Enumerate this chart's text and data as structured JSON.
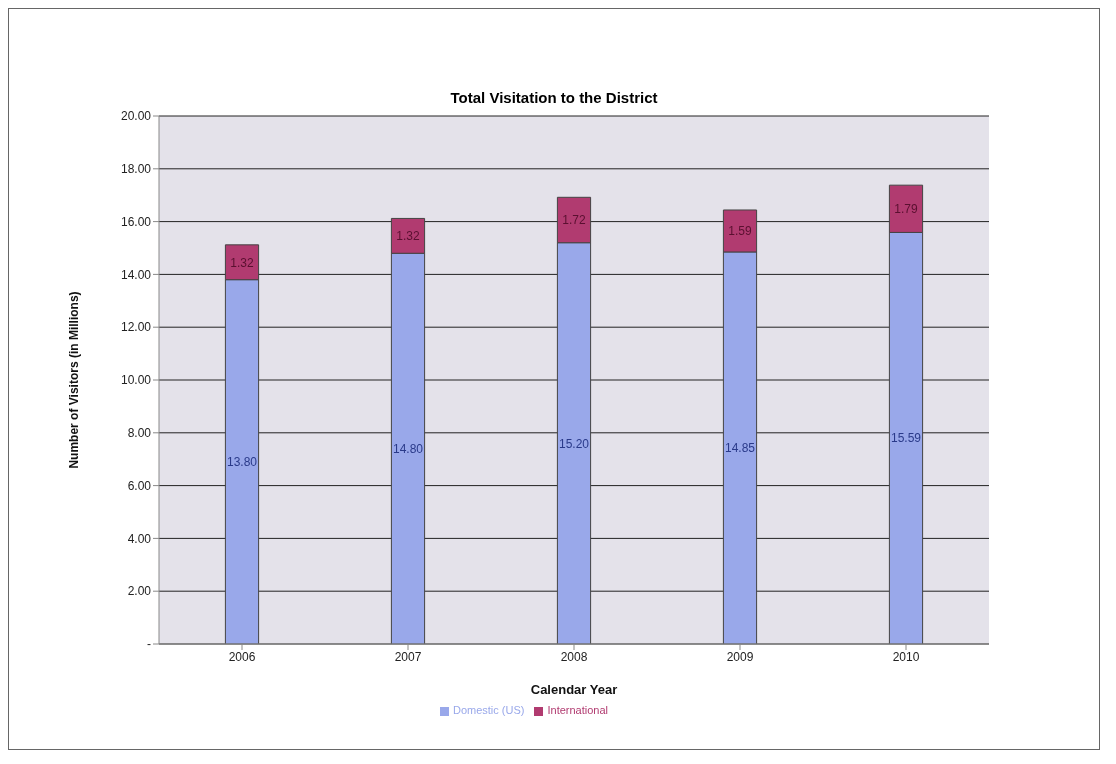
{
  "chart_data": {
    "type": "bar",
    "title": "Total Visitation to the District",
    "xlabel": "Calendar Year",
    "ylabel": "Number of Visitors (in Millions)",
    "categories": [
      "2006",
      "2007",
      "2008",
      "2009",
      "2010"
    ],
    "series": [
      {
        "name": "Domestic (US)",
        "color": "#99a8ea",
        "values": [
          13.8,
          14.8,
          15.2,
          14.85,
          15.59
        ],
        "value_labels": [
          "13.80",
          "14.80",
          "15.20",
          "14.85",
          "15.59"
        ]
      },
      {
        "name": "International",
        "color": "#b13b70",
        "values": [
          1.32,
          1.32,
          1.72,
          1.59,
          1.79
        ],
        "value_labels": [
          "1.32",
          "1.32",
          "1.72",
          "1.59",
          "1.79"
        ]
      }
    ],
    "stacked": true,
    "ylim": [
      0,
      20
    ],
    "yticks": [
      {
        "value": 0,
        "label": "-"
      },
      {
        "value": 2,
        "label": "2.00"
      },
      {
        "value": 4,
        "label": "4.00"
      },
      {
        "value": 6,
        "label": "6.00"
      },
      {
        "value": 8,
        "label": "8.00"
      },
      {
        "value": 10,
        "label": "10.00"
      },
      {
        "value": 12,
        "label": "12.00"
      },
      {
        "value": 14,
        "label": "14.00"
      },
      {
        "value": 16,
        "label": "16.00"
      },
      {
        "value": 18,
        "label": "18.00"
      },
      {
        "value": 20,
        "label": "20.00"
      }
    ],
    "grid": "y",
    "legend": "bottom"
  }
}
